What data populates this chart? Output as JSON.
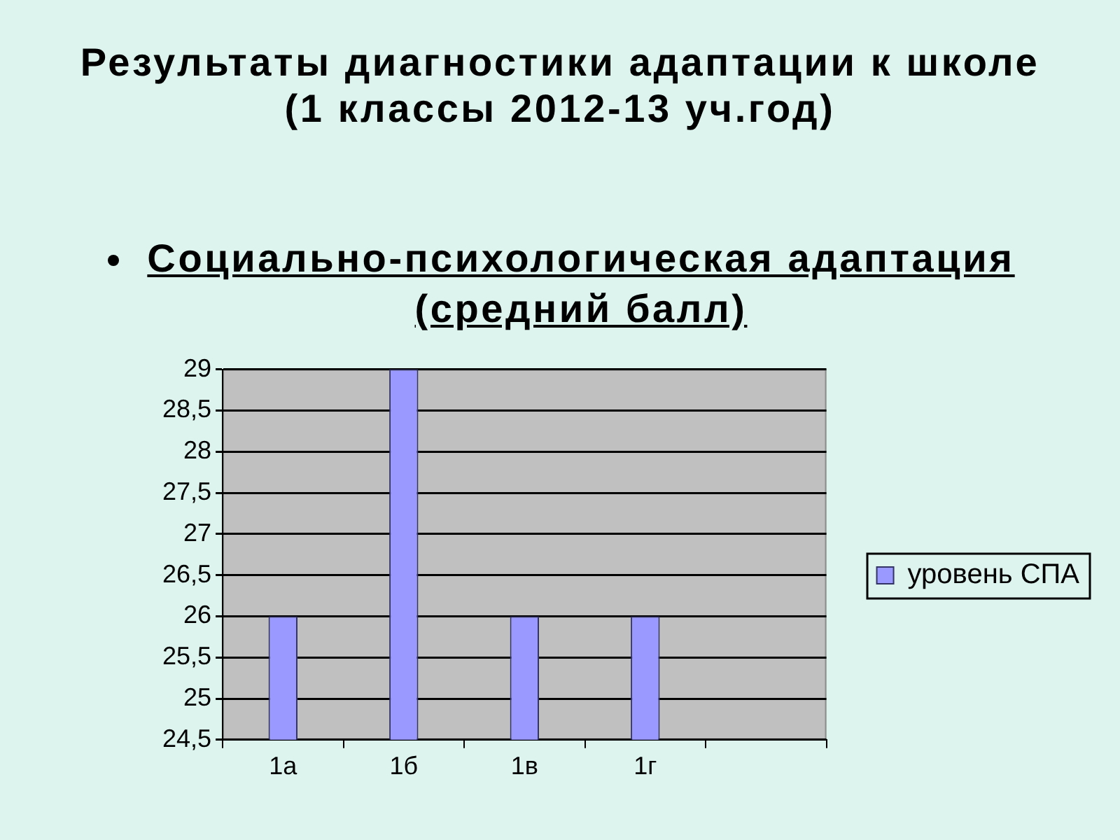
{
  "chart_data": {
    "type": "bar",
    "title": "Результаты диагностики адаптации к школе (1 классы 2012-13 уч.год)",
    "subtitle": "Социально-психологическая адаптация (средний балл)",
    "categories": [
      "1а",
      "1б",
      "1в",
      "1г",
      null
    ],
    "series": [
      {
        "name": "уровень СПА",
        "color": "#9999ff",
        "values": [
          26,
          29,
          26,
          26,
          null
        ]
      }
    ],
    "ylim": [
      24.5,
      29
    ],
    "yticks": [
      {
        "value": 24.5,
        "label": "24,5"
      },
      25,
      {
        "value": 25.5,
        "label": "25,5"
      },
      26,
      {
        "value": 26.5,
        "label": "26,5"
      },
      27,
      {
        "value": 27.5,
        "label": "27,5"
      },
      28,
      {
        "value": 28.5,
        "label": "28,5"
      },
      29
    ],
    "grid": "y",
    "legend": "right"
  }
}
